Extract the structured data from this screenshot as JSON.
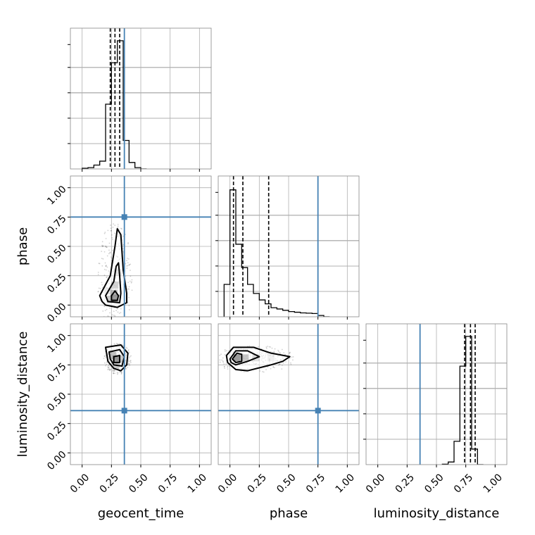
{
  "chart_data": {
    "type": "corner",
    "parameters": [
      "geocent_time",
      "phase",
      "luminosity_distance"
    ],
    "axis_labels": [
      "geocent_time",
      "phase",
      "luminosity_distance"
    ],
    "ticks": {
      "values": [
        0.0,
        0.25,
        0.5,
        0.75,
        1.0
      ],
      "labels": [
        "0.00",
        "0.25",
        "0.50",
        "0.75",
        "1.00"
      ]
    },
    "limits": [
      -0.1,
      1.1
    ],
    "truth": {
      "geocent_time": 0.36,
      "phase": 0.75,
      "luminosity_distance": 0.36
    },
    "truth_color": "#4682b4",
    "quantiles": {
      "geocent_time": [
        0.24,
        0.28,
        0.32
      ],
      "phase": [
        0.03,
        0.11,
        0.33
      ],
      "luminosity_distance": [
        0.74,
        0.79,
        0.83
      ]
    },
    "histograms": {
      "geocent_time": {
        "edges": [
          0.0,
          0.05,
          0.1,
          0.15,
          0.2,
          0.25,
          0.3,
          0.35,
          0.4,
          0.45,
          0.5,
          0.55
        ],
        "counts": [
          0.005,
          0.01,
          0.03,
          0.06,
          0.5,
          0.82,
          0.99,
          0.22,
          0.05,
          0.01,
          0.0
        ]
      },
      "phase": {
        "edges": [
          -0.05,
          0.0,
          0.05,
          0.1,
          0.15,
          0.2,
          0.25,
          0.3,
          0.35,
          0.4,
          0.45,
          0.5,
          0.55,
          0.6,
          0.65,
          0.7,
          0.75,
          0.8,
          0.85
        ],
        "counts": [
          0.25,
          0.98,
          0.56,
          0.38,
          0.25,
          0.18,
          0.13,
          0.1,
          0.07,
          0.06,
          0.05,
          0.04,
          0.035,
          0.03,
          0.028,
          0.025,
          0.01,
          0.0
        ]
      },
      "luminosity_distance": {
        "edges": [
          0.55,
          0.6,
          0.65,
          0.7,
          0.75,
          0.8,
          0.85,
          0.9
        ],
        "counts": [
          0.003,
          0.02,
          0.18,
          0.76,
          0.99,
          0.12,
          0.0
        ]
      }
    },
    "pairs": [
      {
        "x": "geocent_time",
        "y": "phase",
        "contours": [
          [
            [
              0.2,
              0.0
            ],
            [
              0.3,
              -0.02
            ],
            [
              0.38,
              0.02
            ],
            [
              0.38,
              0.1
            ],
            [
              0.35,
              0.3
            ],
            [
              0.33,
              0.6
            ],
            [
              0.3,
              0.65
            ],
            [
              0.28,
              0.5
            ],
            [
              0.24,
              0.25
            ],
            [
              0.15,
              0.08
            ],
            [
              0.17,
              0.03
            ]
          ],
          [
            [
              0.22,
              0.03
            ],
            [
              0.32,
              0.02
            ],
            [
              0.33,
              0.1
            ],
            [
              0.32,
              0.25
            ],
            [
              0.31,
              0.36
            ],
            [
              0.29,
              0.33
            ],
            [
              0.27,
              0.2
            ],
            [
              0.2,
              0.08
            ]
          ],
          [
            [
              0.25,
              0.04
            ],
            [
              0.3,
              0.04
            ],
            [
              0.31,
              0.08
            ],
            [
              0.28,
              0.12
            ],
            [
              0.25,
              0.08
            ]
          ]
        ],
        "density": [
          [
            0.28,
            0.06,
            1.0
          ],
          [
            0.27,
            0.1,
            0.7
          ],
          [
            0.24,
            0.05,
            0.55
          ],
          [
            0.28,
            0.17,
            0.45
          ],
          [
            0.3,
            0.28,
            0.25
          ],
          [
            0.22,
            0.12,
            0.2
          ]
        ]
      },
      {
        "x": "geocent_time",
        "y": "luminosity_distance",
        "contours": [
          [
            [
              0.2,
              0.9
            ],
            [
              0.33,
              0.92
            ],
            [
              0.39,
              0.85
            ],
            [
              0.38,
              0.75
            ],
            [
              0.33,
              0.7
            ],
            [
              0.27,
              0.72
            ],
            [
              0.22,
              0.78
            ]
          ],
          [
            [
              0.23,
              0.86
            ],
            [
              0.32,
              0.88
            ],
            [
              0.36,
              0.82
            ],
            [
              0.34,
              0.74
            ],
            [
              0.27,
              0.75
            ],
            [
              0.24,
              0.8
            ]
          ],
          [
            [
              0.27,
              0.82
            ],
            [
              0.32,
              0.83
            ],
            [
              0.32,
              0.77
            ],
            [
              0.27,
              0.77
            ]
          ]
        ],
        "density": [
          [
            0.29,
            0.8,
            1.0
          ],
          [
            0.26,
            0.83,
            0.6
          ],
          [
            0.32,
            0.8,
            0.5
          ],
          [
            0.29,
            0.75,
            0.4
          ]
        ]
      },
      {
        "x": "phase",
        "y": "luminosity_distance",
        "contours": [
          [
            [
              -0.03,
              0.83
            ],
            [
              0.03,
              0.9
            ],
            [
              0.2,
              0.9
            ],
            [
              0.35,
              0.85
            ],
            [
              0.51,
              0.82
            ],
            [
              0.45,
              0.78
            ],
            [
              0.35,
              0.75
            ],
            [
              0.15,
              0.7
            ],
            [
              0.05,
              0.71
            ],
            [
              -0.02,
              0.77
            ]
          ],
          [
            [
              0.0,
              0.8
            ],
            [
              0.05,
              0.87
            ],
            [
              0.15,
              0.87
            ],
            [
              0.25,
              0.82
            ],
            [
              0.15,
              0.78
            ],
            [
              0.05,
              0.75
            ],
            [
              0.01,
              0.77
            ]
          ],
          [
            [
              0.02,
              0.8
            ],
            [
              0.06,
              0.85
            ],
            [
              0.1,
              0.84
            ],
            [
              0.1,
              0.78
            ],
            [
              0.05,
              0.77
            ]
          ]
        ],
        "density": [
          [
            0.06,
            0.81,
            1.0
          ],
          [
            0.13,
            0.81,
            0.55
          ],
          [
            0.22,
            0.81,
            0.3
          ],
          [
            0.35,
            0.81,
            0.15
          ]
        ]
      }
    ],
    "grid": true
  }
}
